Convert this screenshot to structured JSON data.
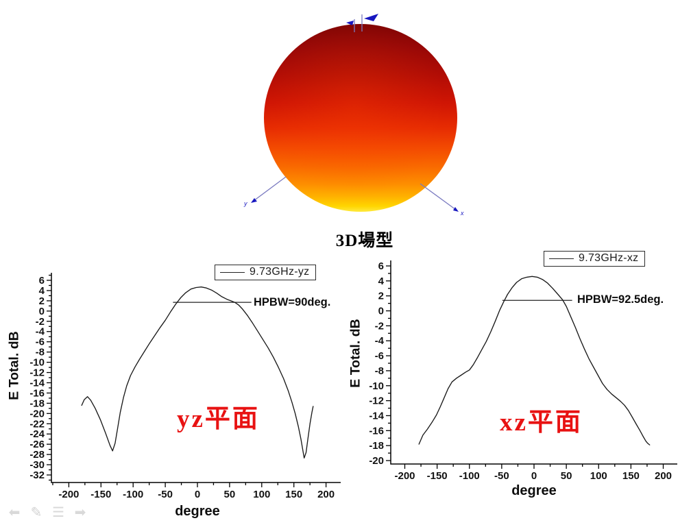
{
  "page": {
    "background": "#ffffff"
  },
  "pattern3d": {
    "title": "3D場型",
    "axis_x_label": "x",
    "axis_y_label": "y",
    "axis_line_color": "#7a7ac0",
    "axis_marker_color": "#1818c0",
    "gradient_stops": [
      "#7e0404 0%",
      "#960707 12%",
      "#b30d05 28%",
      "#cf1504 42%",
      "#e62b02 55%",
      "#f34a01 66%",
      "#f96a00 76%",
      "#fd8d00 85%",
      "#ffb200 92%",
      "#ffd500 97%",
      "#ffea40 100%"
    ]
  },
  "nav": {
    "icons": [
      {
        "name": "previous-arrow",
        "glyph": "⬅"
      },
      {
        "name": "pen",
        "glyph": "✎"
      },
      {
        "name": "menu",
        "glyph": "☰"
      },
      {
        "name": "next-arrow",
        "glyph": "➡"
      }
    ]
  },
  "chart_data": [
    {
      "id": "yz-plane-pattern",
      "type": "line",
      "title": "",
      "xlabel": "degree",
      "ylabel": "E Total. dB",
      "legend": "9.73GHz-yz",
      "legend_position": "top-right",
      "plane_label": "yz平面",
      "plane_label_color": "#e81212",
      "hpbw_label": "HPBW=90deg.",
      "xlim": [
        -227,
        223
      ],
      "ylim": [
        -33.5,
        7.5
      ],
      "grid": false,
      "xticks": {
        "start": -200,
        "end": 200,
        "major": 50,
        "minor": 25,
        "minor_start": -225,
        "minor_end": 225
      },
      "yticks": {
        "start": -32,
        "end": 6,
        "major": 2,
        "minor": 1,
        "minor_start": -33,
        "minor_end": 7
      },
      "annotation": {
        "y_db": 1.7,
        "x_from": -38,
        "x_to": 84
      },
      "series": [
        {
          "name": "9.73GHz-yz",
          "color": "#1a1a1a",
          "points": [
            [
              -180,
              -18.4
            ],
            [
              -176,
              -17.3
            ],
            [
              -171,
              -16.7
            ],
            [
              -166,
              -17.4
            ],
            [
              -159,
              -19.0
            ],
            [
              -151,
              -21.2
            ],
            [
              -143,
              -23.8
            ],
            [
              -136,
              -26.2
            ],
            [
              -132,
              -27.3
            ],
            [
              -128,
              -25.8
            ],
            [
              -124,
              -22.8
            ],
            [
              -120,
              -19.8
            ],
            [
              -115,
              -16.9
            ],
            [
              -110,
              -14.6
            ],
            [
              -104,
              -12.6
            ],
            [
              -97,
              -10.9
            ],
            [
              -90,
              -9.4
            ],
            [
              -82,
              -7.8
            ],
            [
              -74,
              -6.2
            ],
            [
              -66,
              -4.7
            ],
            [
              -58,
              -3.2
            ],
            [
              -50,
              -1.8
            ],
            [
              -42,
              -0.2
            ],
            [
              -34,
              1.3
            ],
            [
              -26,
              2.6
            ],
            [
              -18,
              3.6
            ],
            [
              -10,
              4.3
            ],
            [
              -2,
              4.6
            ],
            [
              6,
              4.7
            ],
            [
              14,
              4.5
            ],
            [
              22,
              4.1
            ],
            [
              30,
              3.5
            ],
            [
              38,
              2.8
            ],
            [
              46,
              2.3
            ],
            [
              52,
              2.0
            ],
            [
              58,
              1.7
            ],
            [
              64,
              1.2
            ],
            [
              70,
              0.4
            ],
            [
              78,
              -0.9
            ],
            [
              86,
              -2.4
            ],
            [
              94,
              -4.0
            ],
            [
              102,
              -5.6
            ],
            [
              110,
              -7.2
            ],
            [
              118,
              -9.0
            ],
            [
              126,
              -11.0
            ],
            [
              134,
              -13.2
            ],
            [
              141,
              -15.5
            ],
            [
              147,
              -17.8
            ],
            [
              152,
              -20.0
            ],
            [
              157,
              -22.6
            ],
            [
              161,
              -25.0
            ],
            [
              164,
              -27.2
            ],
            [
              166,
              -28.7
            ],
            [
              169,
              -27.6
            ],
            [
              172,
              -24.8
            ],
            [
              175,
              -22.0
            ],
            [
              178,
              -19.8
            ],
            [
              180,
              -18.6
            ]
          ]
        }
      ]
    },
    {
      "id": "xz-plane-pattern",
      "type": "line",
      "title": "",
      "xlabel": "degree",
      "ylabel": "E Total. dB",
      "legend": "9.73GHz-xz",
      "legend_position": "top-right",
      "plane_label": "xz平面",
      "plane_label_color": "#e81212",
      "hpbw_label": "HPBW=92.5deg.",
      "xlim": [
        -222,
        222
      ],
      "ylim": [
        -21,
        7
      ],
      "grid": false,
      "xticks": {
        "start": -200,
        "end": 200,
        "major": 50,
        "minor": 25,
        "minor_start": -225,
        "minor_end": 225
      },
      "yticks": {
        "start": -20,
        "end": 6,
        "major": 2,
        "minor": 1,
        "minor_start": -21,
        "minor_end": 7
      },
      "annotation": {
        "y_db": 1.4,
        "x_from": -49,
        "x_to": 59
      },
      "series": [
        {
          "name": "9.73GHz-xz",
          "color": "#1a1a1a",
          "points": [
            [
              -178,
              -17.8
            ],
            [
              -172,
              -16.6
            ],
            [
              -165,
              -15.8
            ],
            [
              -158,
              -14.9
            ],
            [
              -151,
              -13.9
            ],
            [
              -145,
              -12.8
            ],
            [
              -139,
              -11.6
            ],
            [
              -133,
              -10.4
            ],
            [
              -127,
              -9.5
            ],
            [
              -120,
              -9.0
            ],
            [
              -113,
              -8.6
            ],
            [
              -106,
              -8.2
            ],
            [
              -100,
              -7.9
            ],
            [
              -94,
              -7.2
            ],
            [
              -88,
              -6.3
            ],
            [
              -81,
              -5.2
            ],
            [
              -74,
              -4.1
            ],
            [
              -67,
              -2.8
            ],
            [
              -60,
              -1.4
            ],
            [
              -53,
              0.1
            ],
            [
              -47,
              1.2
            ],
            [
              -41,
              2.2
            ],
            [
              -34,
              3.1
            ],
            [
              -27,
              3.8
            ],
            [
              -19,
              4.3
            ],
            [
              -11,
              4.5
            ],
            [
              -3,
              4.6
            ],
            [
              5,
              4.5
            ],
            [
              13,
              4.2
            ],
            [
              21,
              3.7
            ],
            [
              29,
              3.0
            ],
            [
              37,
              2.2
            ],
            [
              44,
              1.5
            ],
            [
              50,
              0.6
            ],
            [
              57,
              -0.8
            ],
            [
              64,
              -2.2
            ],
            [
              71,
              -3.7
            ],
            [
              78,
              -5.1
            ],
            [
              85,
              -6.4
            ],
            [
              92,
              -7.5
            ],
            [
              99,
              -8.6
            ],
            [
              106,
              -9.7
            ],
            [
              113,
              -10.5
            ],
            [
              120,
              -11.1
            ],
            [
              127,
              -11.6
            ],
            [
              134,
              -12.1
            ],
            [
              140,
              -12.6
            ],
            [
              146,
              -13.3
            ],
            [
              152,
              -14.2
            ],
            [
              158,
              -15.1
            ],
            [
              164,
              -16.0
            ],
            [
              169,
              -16.8
            ],
            [
              173,
              -17.4
            ],
            [
              176,
              -17.7
            ],
            [
              179,
              -17.9
            ]
          ]
        }
      ]
    }
  ]
}
